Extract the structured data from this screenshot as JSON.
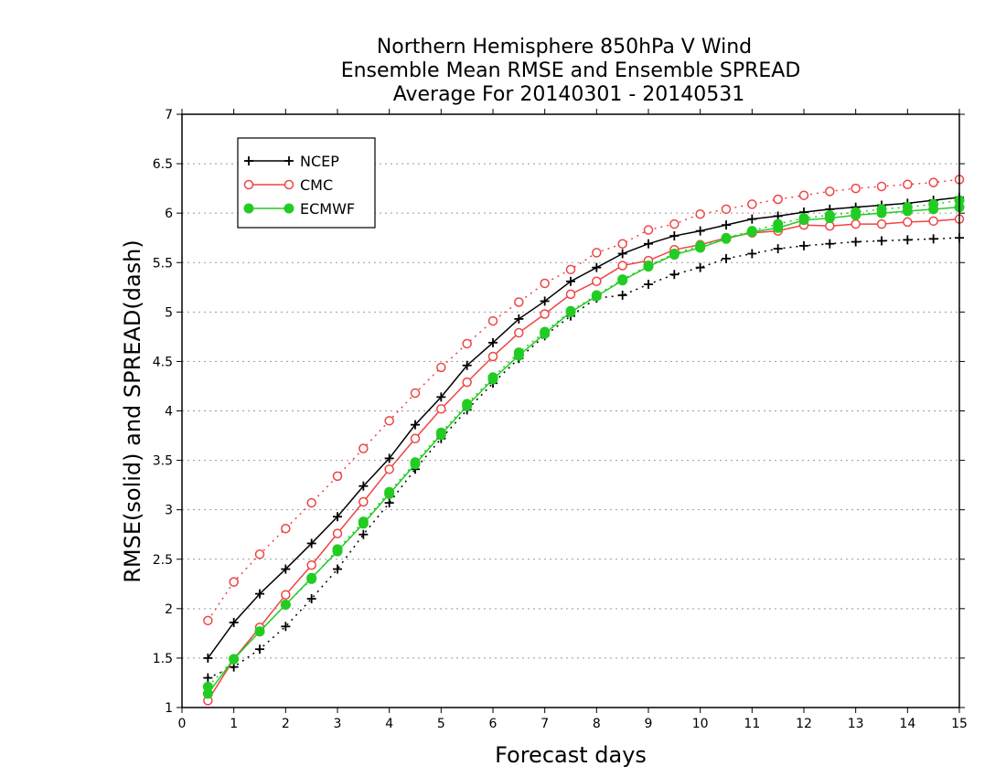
{
  "chart_data": {
    "type": "line",
    "title_lines": [
      "Northern Hemisphere 850hPa V Wind",
      "Ensemble Mean RMSE and Ensemble SPREAD",
      "Average For 20140301 - 20140531"
    ],
    "xlabel": "Forecast days",
    "ylabel": "RMSE(solid) and SPREAD(dash)",
    "xlim": [
      0,
      15
    ],
    "ylim": [
      1,
      7
    ],
    "xticks": [
      "0",
      "1",
      "2",
      "3",
      "4",
      "5",
      "6",
      "7",
      "8",
      "9",
      "10",
      "11",
      "12",
      "13",
      "14",
      "15"
    ],
    "yticks": [
      "1",
      "1.5",
      "2",
      "2.5",
      "3",
      "3.5",
      "4",
      "4.5",
      "5",
      "5.5",
      "6",
      "6.5",
      "7"
    ],
    "grid": "horizontal dotted",
    "legend_position": "top-left",
    "x": [
      0.5,
      1,
      1.5,
      2,
      2.5,
      3,
      3.5,
      4,
      4.5,
      5,
      5.5,
      6,
      6.5,
      7,
      7.5,
      8,
      8.5,
      9,
      9.5,
      10,
      10.5,
      11,
      11.5,
      12,
      12.5,
      13,
      13.5,
      14,
      14.5,
      15
    ],
    "series": [
      {
        "name": "NCEP",
        "color": "#000000",
        "marker": "plus",
        "rmse": [
          1.5,
          1.86,
          2.15,
          2.4,
          2.66,
          2.93,
          3.24,
          3.52,
          3.86,
          4.14,
          4.46,
          4.69,
          4.93,
          5.11,
          5.31,
          5.45,
          5.59,
          5.69,
          5.77,
          5.82,
          5.88,
          5.94,
          5.97,
          6.01,
          6.04,
          6.06,
          6.08,
          6.1,
          6.13,
          6.16
        ],
        "spread": [
          1.3,
          1.41,
          1.59,
          1.82,
          2.1,
          2.4,
          2.75,
          3.07,
          3.41,
          3.72,
          4.01,
          4.28,
          4.53,
          4.76,
          4.96,
          5.14,
          5.17,
          5.28,
          5.38,
          5.45,
          5.54,
          5.59,
          5.64,
          5.67,
          5.69,
          5.71,
          5.72,
          5.73,
          5.74,
          5.75
        ]
      },
      {
        "name": "CMC",
        "color": "#ee4444",
        "marker": "open-circle",
        "rmse": [
          1.07,
          1.49,
          1.81,
          2.14,
          2.44,
          2.76,
          3.08,
          3.41,
          3.72,
          4.02,
          4.29,
          4.55,
          4.79,
          4.98,
          5.18,
          5.31,
          5.47,
          5.52,
          5.63,
          5.68,
          5.75,
          5.8,
          5.82,
          5.88,
          5.87,
          5.89,
          5.89,
          5.91,
          5.92,
          5.94
        ],
        "spread": [
          1.88,
          2.27,
          2.55,
          2.81,
          3.07,
          3.34,
          3.62,
          3.9,
          4.18,
          4.44,
          4.68,
          4.91,
          5.1,
          5.29,
          5.43,
          5.6,
          5.69,
          5.83,
          5.89,
          5.99,
          6.04,
          6.09,
          6.14,
          6.18,
          6.22,
          6.25,
          6.27,
          6.29,
          6.31,
          6.34
        ]
      },
      {
        "name": "ECMWF",
        "color": "#22cc22",
        "marker": "filled-circle",
        "rmse": [
          1.14,
          1.49,
          1.77,
          2.04,
          2.31,
          2.58,
          2.86,
          3.16,
          3.46,
          3.76,
          4.05,
          4.32,
          4.56,
          4.78,
          5.0,
          5.16,
          5.32,
          5.46,
          5.58,
          5.65,
          5.74,
          5.81,
          5.85,
          5.93,
          5.95,
          5.98,
          6.0,
          6.02,
          6.04,
          6.06
        ],
        "spread": [
          1.21,
          1.49,
          1.77,
          2.04,
          2.3,
          2.6,
          2.88,
          3.18,
          3.48,
          3.78,
          4.07,
          4.34,
          4.59,
          4.8,
          5.01,
          5.17,
          5.33,
          5.47,
          5.59,
          5.67,
          5.75,
          5.82,
          5.89,
          5.95,
          5.98,
          6.01,
          6.04,
          6.06,
          6.09,
          6.13
        ]
      }
    ]
  }
}
